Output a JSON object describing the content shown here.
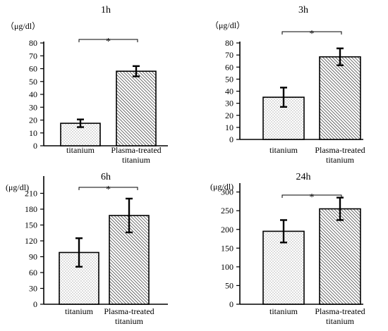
{
  "chart_data": [
    {
      "type": "bar",
      "title": "1h",
      "unit": "（μg/dl）",
      "categories": [
        "titanium",
        "Plasma-treated titanium"
      ],
      "category_lines": [
        [
          "titanium"
        ],
        [
          "Plasma-treated",
          "titanium"
        ]
      ],
      "values": [
        17.5,
        58
      ],
      "errors": [
        3,
        4
      ],
      "ylim": [
        0,
        80
      ],
      "yticks": [
        0,
        10,
        20,
        30,
        40,
        50,
        60,
        70,
        80
      ],
      "significance": "*"
    },
    {
      "type": "bar",
      "title": "3h",
      "unit": "（μg/dl）",
      "categories": [
        "titanium",
        "Plasma-treated titanium"
      ],
      "category_lines": [
        [
          "titanium"
        ],
        [
          "Plasma-treated",
          "titanium"
        ]
      ],
      "values": [
        35,
        68.5
      ],
      "errors": [
        8,
        7
      ],
      "ylim": [
        0,
        80
      ],
      "yticks": [
        0,
        10,
        20,
        30,
        40,
        50,
        60,
        70,
        80
      ],
      "significance": "*"
    },
    {
      "type": "bar",
      "title": "6h",
      "unit": "(μg/dl)",
      "categories": [
        "titanium",
        "Plasma-treated titanium"
      ],
      "category_lines": [
        [
          "titanium"
        ],
        [
          "Plasma-treated",
          "titanium"
        ]
      ],
      "values": [
        98,
        168
      ],
      "errors": [
        27,
        32
      ],
      "ylim": [
        0,
        240
      ],
      "yticks": [
        0,
        30,
        60,
        90,
        120,
        150,
        180,
        210
      ],
      "significance": "*"
    },
    {
      "type": "bar",
      "title": "24h",
      "unit": "(μg/dl)",
      "categories": [
        "titanium",
        "Plasma-treated titanium"
      ],
      "category_lines": [
        [
          "titanium"
        ],
        [
          "Plasma-treated",
          "titanium"
        ]
      ],
      "values": [
        195,
        255
      ],
      "errors": [
        30,
        30
      ],
      "ylim": [
        0,
        320
      ],
      "yticks": [
        0,
        50,
        100,
        150,
        200,
        250,
        300
      ],
      "significance": "*"
    }
  ]
}
